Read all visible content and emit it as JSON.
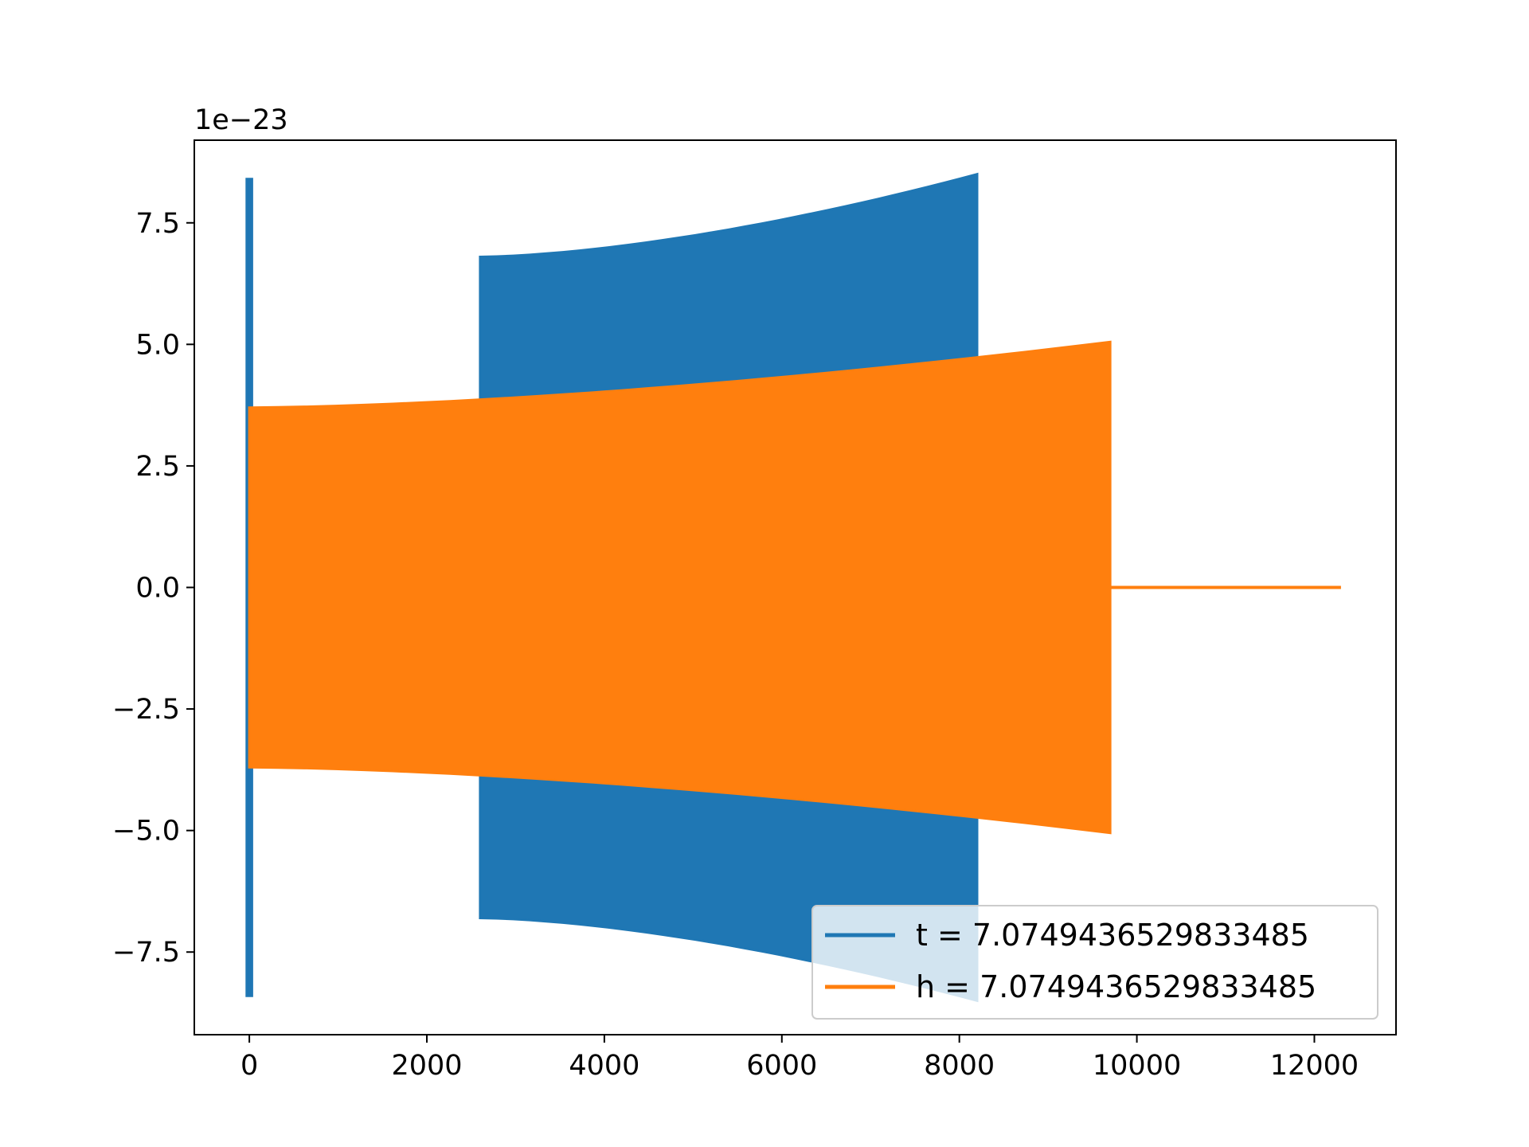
{
  "chart_data": {
    "type": "line",
    "title": "",
    "xlabel": "",
    "ylabel": "",
    "offset_label": "1e−23",
    "xlim": [
      -620,
      12920
    ],
    "ylim": [
      -9.2,
      9.2
    ],
    "xticks": [
      0,
      2000,
      4000,
      6000,
      8000,
      10000,
      12000
    ],
    "xtick_labels": [
      "0",
      "2000",
      "4000",
      "6000",
      "8000",
      "10000",
      "12000"
    ],
    "yticks": [
      -7.5,
      -5.0,
      -2.5,
      0.0,
      2.5,
      5.0,
      7.5
    ],
    "ytick_labels": [
      "−7.5",
      "−5.0",
      "−2.5",
      "0.0",
      "2.5",
      "5.0",
      "7.5"
    ],
    "grid": false,
    "legend_position": "lower-right",
    "series": [
      {
        "name": "t = 7.0749436529833485",
        "color": "#1f77b4",
        "segments": [
          {
            "style": "spike",
            "x": [
              -30,
              30
            ],
            "amplitude": [
              8.4,
              8.4
            ]
          },
          {
            "style": "oscillation-envelope",
            "x": [
              2600,
              8200
            ],
            "amplitude": [
              6.8,
              8.5
            ]
          }
        ]
      },
      {
        "name": "h = 7.0749436529833485",
        "color": "#ff7f0e",
        "segments": [
          {
            "style": "oscillation-envelope",
            "x": [
              0,
              9700
            ],
            "amplitude": [
              3.7,
              5.05
            ]
          },
          {
            "style": "flat",
            "x": [
              9700,
              12300
            ],
            "value": 0.0
          }
        ]
      }
    ]
  }
}
